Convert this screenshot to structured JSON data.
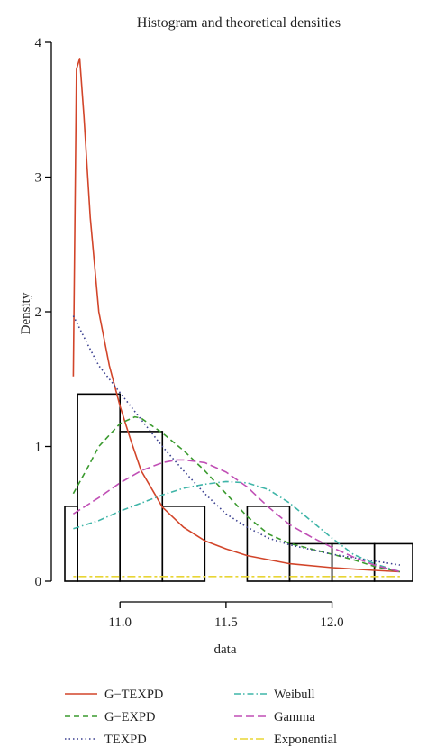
{
  "chart_data": {
    "type": "histogram",
    "title": "Histogram and theoretical densities",
    "xlabel": "data",
    "ylabel": "Density",
    "xlim": [
      10.74,
      12.38
    ],
    "ylim": [
      0,
      4
    ],
    "x_ticks": [
      11.0,
      11.5,
      12.0
    ],
    "x_tick_labels": [
      "11.0",
      "11.5",
      "12.0"
    ],
    "y_ticks": [
      0,
      1,
      2,
      3,
      4
    ],
    "y_tick_labels": [
      "0",
      "1",
      "2",
      "3",
      "4"
    ],
    "grid": false,
    "legend_position": "bottom",
    "histogram": {
      "bins": [
        {
          "x0": 10.6,
          "x1": 10.8,
          "density": 0.556
        },
        {
          "x0": 10.8,
          "x1": 11.0,
          "density": 1.389
        },
        {
          "x0": 11.0,
          "x1": 11.2,
          "density": 1.111
        },
        {
          "x0": 11.2,
          "x1": 11.4,
          "density": 0.556
        },
        {
          "x0": 11.4,
          "x1": 11.6,
          "density": 0.0
        },
        {
          "x0": 11.6,
          "x1": 11.8,
          "density": 0.556
        },
        {
          "x0": 11.8,
          "x1": 12.0,
          "density": 0.278
        },
        {
          "x0": 12.0,
          "x1": 12.2,
          "density": 0.278
        },
        {
          "x0": 12.2,
          "x1": 12.4,
          "density": 0.278
        }
      ]
    },
    "series": [
      {
        "name": "G−TEXPD",
        "color": "#d2452a",
        "dash": "solid",
        "x": [
          10.78,
          10.795,
          10.81,
          10.83,
          10.86,
          10.9,
          10.95,
          11.0,
          11.05,
          11.1,
          11.2,
          11.3,
          11.4,
          11.5,
          11.6,
          11.8,
          12.0,
          12.2,
          12.32
        ],
        "y": [
          1.52,
          3.8,
          3.88,
          3.45,
          2.7,
          2.0,
          1.6,
          1.3,
          1.05,
          0.82,
          0.55,
          0.4,
          0.3,
          0.24,
          0.19,
          0.13,
          0.1,
          0.08,
          0.07
        ]
      },
      {
        "name": "G−EXPD",
        "color": "#3a9a2e",
        "dash": "dashed",
        "x": [
          10.78,
          10.85,
          10.9,
          11.0,
          11.07,
          11.1,
          11.2,
          11.3,
          11.4,
          11.5,
          11.6,
          11.7,
          11.8,
          11.9,
          12.0,
          12.1,
          12.2,
          12.32
        ],
        "y": [
          0.65,
          0.85,
          1.0,
          1.17,
          1.22,
          1.21,
          1.1,
          0.97,
          0.82,
          0.65,
          0.48,
          0.35,
          0.28,
          0.24,
          0.2,
          0.16,
          0.11,
          0.07
        ]
      },
      {
        "name": "TEXPD",
        "color": "#3a3f8f",
        "dash": "dotted",
        "x": [
          10.78,
          10.85,
          10.9,
          11.0,
          11.1,
          11.2,
          11.3,
          11.4,
          11.5,
          11.6,
          11.7,
          11.8,
          12.0,
          12.2,
          12.32
        ],
        "y": [
          1.97,
          1.75,
          1.6,
          1.4,
          1.2,
          1.0,
          0.82,
          0.65,
          0.5,
          0.4,
          0.32,
          0.27,
          0.2,
          0.15,
          0.12
        ]
      },
      {
        "name": "Weibull",
        "color": "#3fb5a8",
        "dash": "dashdot",
        "x": [
          10.78,
          10.9,
          11.0,
          11.1,
          11.2,
          11.3,
          11.4,
          11.5,
          11.6,
          11.7,
          11.8,
          11.9,
          12.0,
          12.1,
          12.2,
          12.32
        ],
        "y": [
          0.39,
          0.45,
          0.52,
          0.58,
          0.64,
          0.69,
          0.72,
          0.74,
          0.73,
          0.68,
          0.58,
          0.45,
          0.32,
          0.2,
          0.13,
          0.07
        ]
      },
      {
        "name": "Gamma",
        "color": "#c04fb5",
        "dash": "longdash",
        "x": [
          10.78,
          10.9,
          11.0,
          11.1,
          11.2,
          11.27,
          11.3,
          11.4,
          11.5,
          11.6,
          11.7,
          11.8,
          11.9,
          12.0,
          12.1,
          12.2,
          12.32
        ],
        "y": [
          0.5,
          0.62,
          0.73,
          0.82,
          0.88,
          0.9,
          0.9,
          0.88,
          0.81,
          0.7,
          0.55,
          0.42,
          0.33,
          0.25,
          0.18,
          0.12,
          0.07
        ]
      },
      {
        "name": "Exponential",
        "color": "#e8d534",
        "dash": "twodash",
        "x": [
          10.78,
          12.32
        ],
        "y": [
          0.035,
          0.035
        ]
      }
    ]
  }
}
